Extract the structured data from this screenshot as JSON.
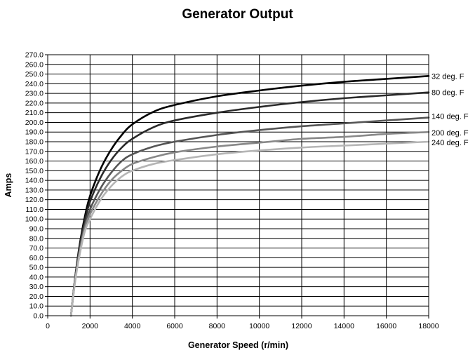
{
  "chart_data": {
    "type": "line",
    "title": "Generator Output",
    "xlabel": "Generator Speed (r/min)",
    "ylabel": "Amps",
    "xlim": [
      0,
      18000
    ],
    "ylim": [
      0,
      270
    ],
    "x_ticks": [
      0,
      2000,
      4000,
      6000,
      8000,
      10000,
      12000,
      14000,
      16000,
      18000
    ],
    "x_tick_labels": [
      "0",
      "2000",
      "4000",
      "6000",
      "8000",
      "10000",
      "12000",
      "14000",
      "16000",
      "18000"
    ],
    "y_ticks": [
      0,
      10,
      20,
      30,
      40,
      50,
      60,
      70,
      80,
      90,
      100,
      110,
      120,
      130,
      140,
      150,
      160,
      170,
      180,
      190,
      200,
      210,
      220,
      230,
      240,
      250,
      260,
      270
    ],
    "y_tick_labels": [
      "0.0",
      "10.0",
      "20.0",
      "30.0",
      "40.0",
      "50.0",
      "60.0",
      "70.0",
      "80.0",
      "90.0",
      "100.0",
      "110.0",
      "120.0",
      "130.0",
      "140.0",
      "150.0",
      "160.0",
      "170.0",
      "180.0",
      "190.0",
      "200.0",
      "210.0",
      "220.0",
      "230.0",
      "240.0",
      "250.0",
      "260.0",
      "270.0"
    ],
    "grid": true,
    "x": [
      1100,
      1300,
      1500,
      1750,
      2000,
      2500,
      3000,
      3500,
      4000,
      5000,
      6000,
      8000,
      10000,
      12000,
      14000,
      16000,
      18000
    ],
    "series": [
      {
        "name": "32 deg. F",
        "color": "#000000",
        "values": [
          0,
          40,
          72,
          102,
          124,
          152,
          172,
          187,
          198,
          211,
          218,
          227,
          233,
          238,
          242,
          245,
          248
        ]
      },
      {
        "name": "80 deg. F",
        "color": "#2a2a2a",
        "values": [
          0,
          40,
          70,
          98,
          118,
          143,
          161,
          174,
          183,
          195,
          202,
          210,
          216,
          221,
          225,
          228,
          231
        ]
      },
      {
        "name": "140 deg. F",
        "color": "#555555",
        "values": [
          0,
          38,
          67,
          93,
          110,
          132,
          148,
          160,
          167,
          175,
          180,
          187,
          192,
          196,
          199,
          202,
          205
        ]
      },
      {
        "name": "200 deg. F",
        "color": "#888888",
        "values": [
          0,
          37,
          64,
          90,
          105,
          125,
          140,
          150,
          157,
          164,
          169,
          175,
          179,
          183,
          185,
          188,
          190
        ]
      },
      {
        "name": "240 deg. F",
        "color": "#b5b5b5",
        "values": [
          0,
          36,
          62,
          87,
          100,
          120,
          134,
          144,
          150,
          157,
          161,
          167,
          171,
          174,
          176,
          178,
          180
        ]
      }
    ]
  }
}
